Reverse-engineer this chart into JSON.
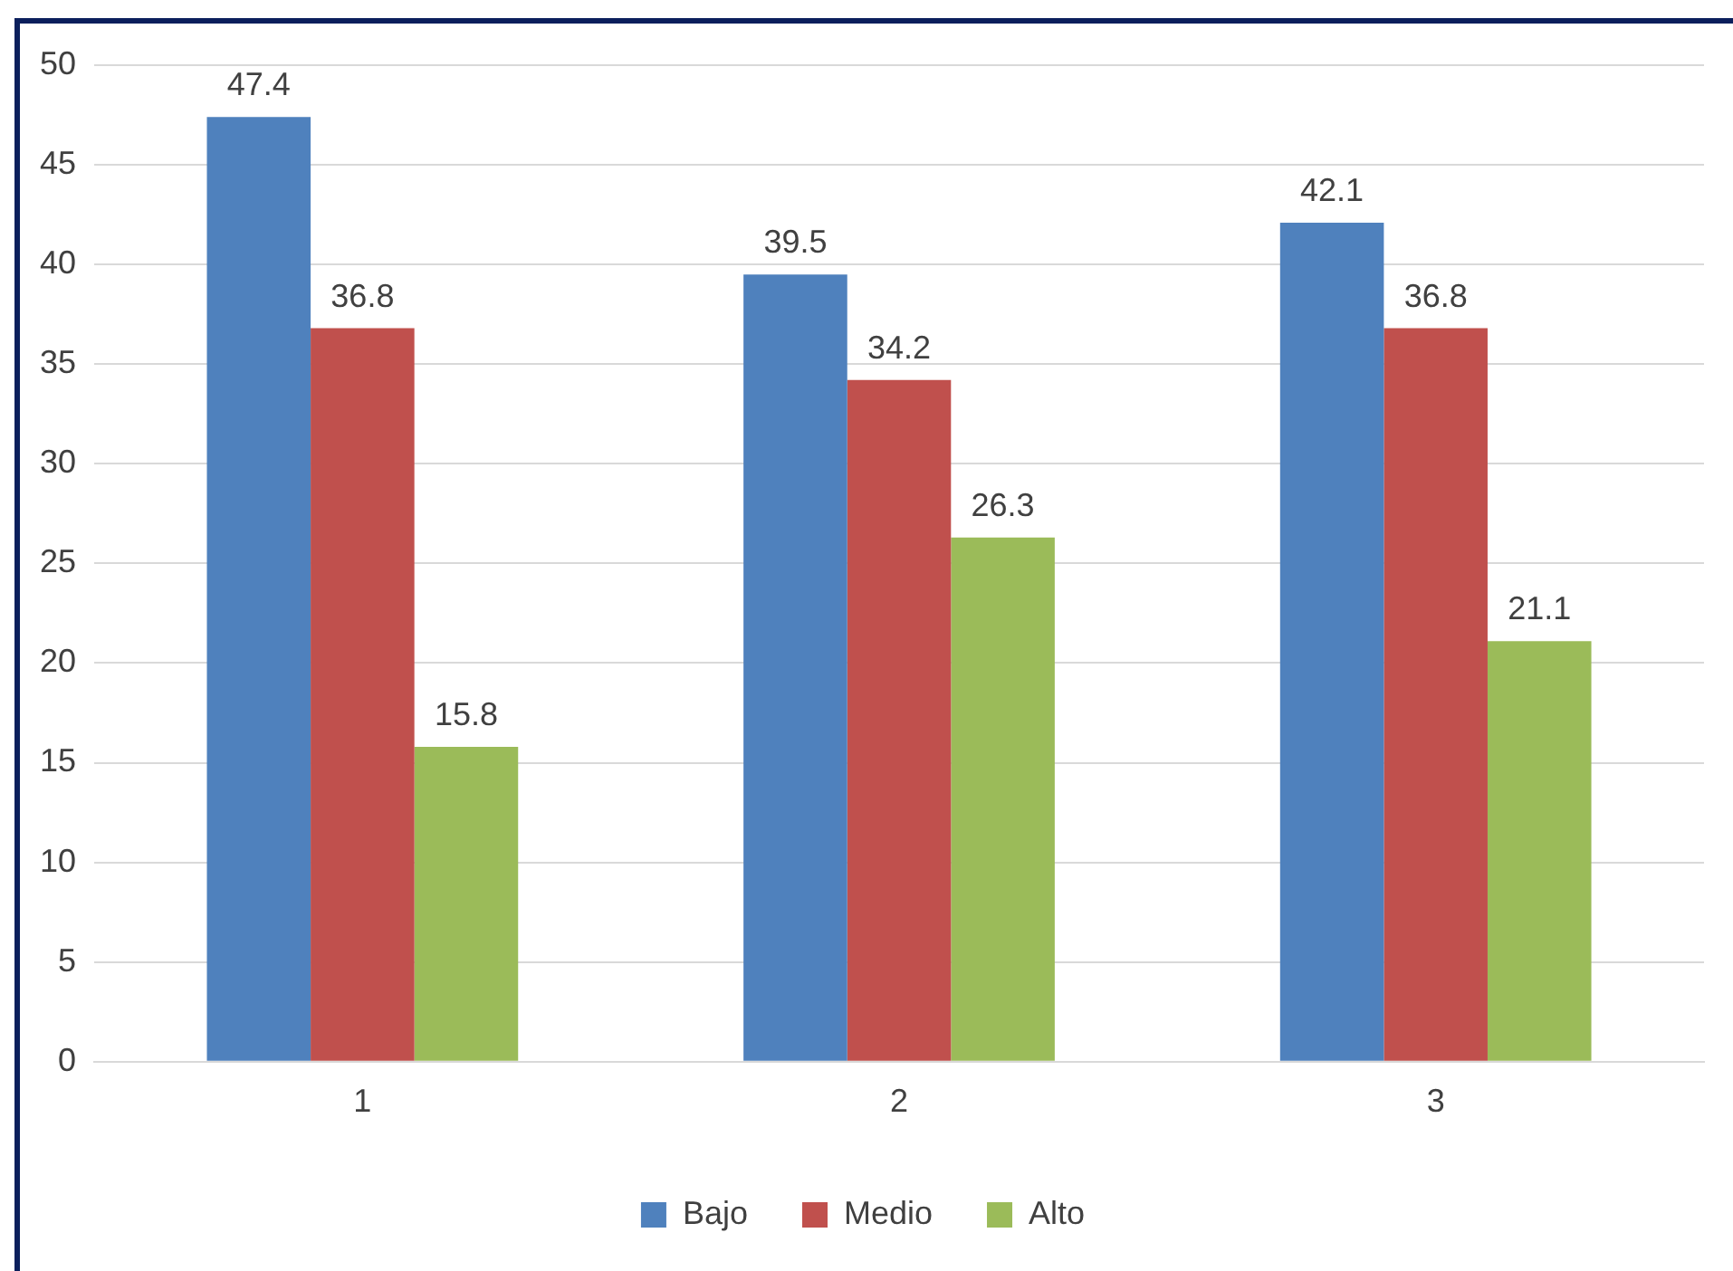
{
  "chart_data": {
    "type": "bar",
    "categories": [
      "1",
      "2",
      "3"
    ],
    "series": [
      {
        "name": "Bajo",
        "color": "#4f81bd",
        "values": [
          47.4,
          39.5,
          42.1
        ]
      },
      {
        "name": "Medio",
        "color": "#c0504d",
        "values": [
          36.8,
          34.2,
          36.8
        ]
      },
      {
        "name": "Alto",
        "color": "#9bbb59",
        "values": [
          15.8,
          26.3,
          21.1
        ]
      }
    ],
    "ylim": [
      0,
      50
    ],
    "yticks": [
      0,
      5,
      10,
      15,
      20,
      25,
      30,
      35,
      40,
      45,
      50
    ],
    "grid": "y",
    "legend": "bottom",
    "data_labels": true
  }
}
